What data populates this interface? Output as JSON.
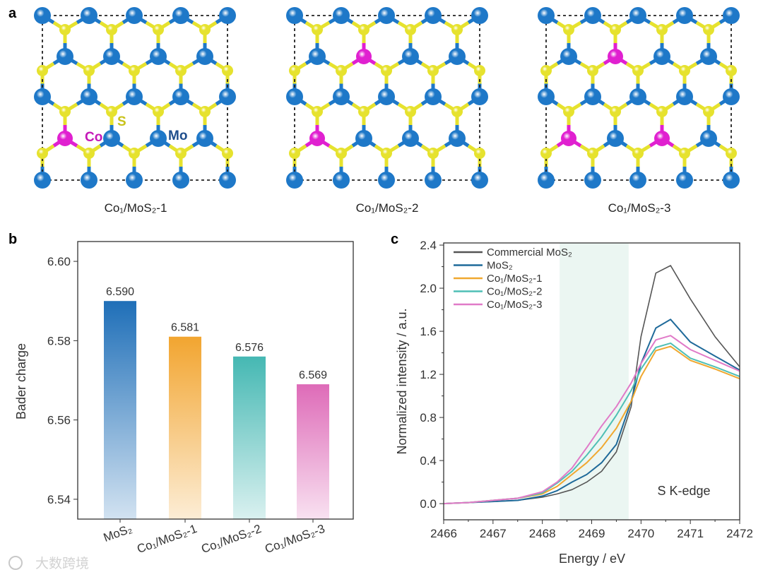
{
  "panel_a": {
    "letter": "a",
    "label_co": "Co",
    "label_s": "S",
    "label_mo": "Mo",
    "structures": [
      {
        "caption": "Co₁/MoS₂-1",
        "co_sites": [
          [
            3,
            0
          ]
        ]
      },
      {
        "caption": "Co₁/MoS₂-2",
        "co_sites": [
          [
            1,
            1
          ],
          [
            3,
            0
          ]
        ]
      },
      {
        "caption": "Co₁/MoS₂-3",
        "co_sites": [
          [
            1,
            1
          ],
          [
            3,
            0
          ],
          [
            3,
            2
          ]
        ]
      }
    ],
    "colors": {
      "mo": "#1e78c8",
      "s": "#e6e22e",
      "co": "#e020d0",
      "label_mo": "#1f4e8c",
      "label_s": "#c8c21a",
      "label_co": "#c418b8"
    }
  },
  "watermark": "大数跨境",
  "chart_data": [
    {
      "panel": "b",
      "type": "bar",
      "title": "",
      "xlabel": "",
      "ylabel": "Bader charge",
      "categories": [
        "MoS₂",
        "Co₁/MoS₂-1",
        "Co₁/MoS₂-2",
        "Co₁/MoS₂-3"
      ],
      "values": [
        6.59,
        6.581,
        6.576,
        6.569
      ],
      "value_labels": [
        "6.590",
        "6.581",
        "6.576",
        "6.569"
      ],
      "colors": [
        "#1f6fb8",
        "#f2a530",
        "#45b8b3",
        "#de6bb8"
      ],
      "ylim": [
        6.535,
        6.605
      ],
      "yticks": [
        6.54,
        6.56,
        6.58,
        6.6
      ],
      "ytick_labels": [
        "6.54",
        "6.56",
        "6.58",
        "6.60"
      ],
      "grid": false
    },
    {
      "panel": "c",
      "type": "line",
      "xlabel": "Energy / eV",
      "ylabel": "Normalized intensity / a.u.",
      "annotation": "S K-edge",
      "xlim": [
        2466,
        2472
      ],
      "ylim": [
        -0.15,
        2.42
      ],
      "xticks": [
        2466,
        2467,
        2468,
        2469,
        2470,
        2471,
        2472
      ],
      "xtick_labels": [
        "2466",
        "2467",
        "2468",
        "2469",
        "2470",
        "2471",
        "2472"
      ],
      "yticks": [
        0.0,
        0.4,
        0.8,
        1.2,
        1.6,
        2.0,
        2.4
      ],
      "ytick_labels": [
        "0.0",
        "0.4",
        "0.8",
        "1.2",
        "1.6",
        "2.0",
        "2.4"
      ],
      "shaded_region": [
        2468.35,
        2469.75
      ],
      "legend_position": "top-left",
      "grid": false,
      "x": [
        2466,
        2466.5,
        2467,
        2467.5,
        2468,
        2468.3,
        2468.6,
        2468.9,
        2469.2,
        2469.5,
        2469.8,
        2470,
        2470.3,
        2470.6,
        2471,
        2471.5,
        2472
      ],
      "series": [
        {
          "name": "Commercial MoS₂",
          "color": "#555555",
          "values": [
            0,
            0.01,
            0.02,
            0.03,
            0.06,
            0.09,
            0.13,
            0.2,
            0.3,
            0.48,
            0.9,
            1.55,
            2.14,
            2.21,
            1.9,
            1.55,
            1.27
          ]
        },
        {
          "name": "MoS₂",
          "color": "#1f6a9a",
          "values": [
            0,
            0.01,
            0.02,
            0.03,
            0.07,
            0.12,
            0.2,
            0.27,
            0.38,
            0.55,
            0.95,
            1.3,
            1.63,
            1.71,
            1.5,
            1.37,
            1.24
          ]
        },
        {
          "name": "Co₁/MoS₂-1",
          "color": "#f0a830",
          "values": [
            0,
            0.01,
            0.03,
            0.05,
            0.09,
            0.16,
            0.27,
            0.38,
            0.52,
            0.7,
            0.95,
            1.18,
            1.42,
            1.46,
            1.33,
            1.25,
            1.16
          ]
        },
        {
          "name": "Co₁/MoS₂-2",
          "color": "#4fbfb5",
          "values": [
            0,
            0.01,
            0.03,
            0.05,
            0.1,
            0.19,
            0.3,
            0.45,
            0.62,
            0.82,
            1.05,
            1.25,
            1.45,
            1.49,
            1.35,
            1.27,
            1.18
          ]
        },
        {
          "name": "Co₁/MoS₂-3",
          "color": "#e07ac8",
          "values": [
            0,
            0.01,
            0.03,
            0.05,
            0.11,
            0.2,
            0.33,
            0.52,
            0.72,
            0.9,
            1.12,
            1.3,
            1.52,
            1.56,
            1.43,
            1.33,
            1.23
          ]
        }
      ]
    }
  ]
}
